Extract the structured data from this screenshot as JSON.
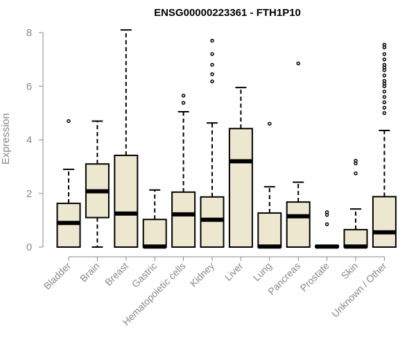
{
  "chart_data": {
    "type": "box",
    "title": "ENSG00000223361 - FTH1P10",
    "ylabel": "Expression",
    "ylim": [
      0,
      8
    ],
    "yticks": [
      0,
      2,
      4,
      6,
      8
    ],
    "grid": false,
    "box_color": "#EDE7CF",
    "categories": [
      "Bladder",
      "Brain",
      "Breast",
      "Gastric",
      "Hematopoietic cells",
      "Kidney",
      "Liver",
      "Lung",
      "Pancreas",
      "Prostate",
      "Skin",
      "Unknown / Other"
    ],
    "boxes": [
      {
        "whisker_low": 0,
        "q1": 0,
        "median": 0.9,
        "q3": 1.63,
        "whisker_high": 2.9,
        "outliers": [
          4.7
        ]
      },
      {
        "whisker_low": 0,
        "q1": 1.1,
        "median": 2.08,
        "q3": 3.1,
        "whisker_high": 4.7,
        "outliers": []
      },
      {
        "whisker_low": 0,
        "q1": 0,
        "median": 1.25,
        "q3": 3.42,
        "whisker_high": 8.1,
        "outliers": []
      },
      {
        "whisker_low": 0,
        "q1": 0,
        "median": 0.02,
        "q3": 1.03,
        "whisker_high": 2.13,
        "outliers": []
      },
      {
        "whisker_low": 0,
        "q1": 0,
        "median": 1.22,
        "q3": 2.05,
        "whisker_high": 5.05,
        "outliers": [
          5.38,
          5.65
        ]
      },
      {
        "whisker_low": 0,
        "q1": 0,
        "median": 1.02,
        "q3": 1.87,
        "whisker_high": 4.63,
        "outliers": [
          6.18,
          6.45,
          6.8,
          7.2,
          7.7
        ]
      },
      {
        "whisker_low": 0,
        "q1": 0,
        "median": 3.2,
        "q3": 4.42,
        "whisker_high": 5.95,
        "outliers": []
      },
      {
        "whisker_low": 0,
        "q1": 0,
        "median": 0.02,
        "q3": 1.27,
        "whisker_high": 2.25,
        "outliers": [
          4.6
        ]
      },
      {
        "whisker_low": 0,
        "q1": 0,
        "median": 1.15,
        "q3": 1.68,
        "whisker_high": 2.42,
        "outliers": [
          6.85
        ]
      },
      {
        "whisker_low": 0,
        "q1": 0,
        "median": 0.02,
        "q3": 0.05,
        "whisker_high": 0.05,
        "outliers": [
          0.85,
          1.2,
          1.3
        ]
      },
      {
        "whisker_low": 0,
        "q1": 0,
        "median": 0.02,
        "q3": 0.65,
        "whisker_high": 1.42,
        "outliers": [
          2.75,
          3.12,
          3.22
        ]
      },
      {
        "whisker_low": 0,
        "q1": 0,
        "median": 0.55,
        "q3": 1.88,
        "whisker_high": 4.35,
        "outliers": [
          5.0,
          5.2,
          5.4,
          5.6,
          5.8,
          6.0,
          6.1,
          6.2,
          6.4,
          6.6,
          6.7,
          6.8,
          7.0,
          7.2,
          7.45,
          7.55
        ]
      }
    ]
  }
}
